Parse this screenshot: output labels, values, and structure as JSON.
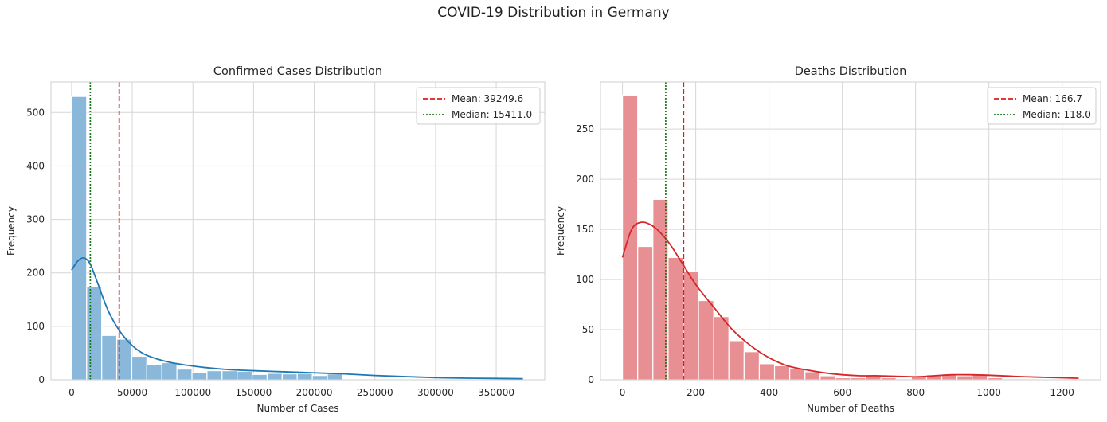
{
  "figure": {
    "title": "COVID-19 Distribution in Germany"
  },
  "chart_data": [
    {
      "type": "bar",
      "subtype": "histogram",
      "title": "Confirmed Cases Distribution",
      "xlabel": "Number of Cases",
      "ylabel": "Frequency",
      "xlim": [
        -17000,
        390000
      ],
      "ylim": [
        0,
        557
      ],
      "xticks": [
        0,
        50000,
        100000,
        150000,
        200000,
        250000,
        300000,
        350000
      ],
      "xtick_labels": [
        "0",
        "50000",
        "100000",
        "150000",
        "200000",
        "250000",
        "300000",
        "350000"
      ],
      "yticks": [
        0,
        100,
        200,
        300,
        400,
        500
      ],
      "ytick_labels": [
        "0",
        "100",
        "200",
        "300",
        "400",
        "500"
      ],
      "grid": true,
      "bar_color": "#8ab8db",
      "kde_color": "#1f77b4",
      "bin_edges": [
        0,
        12400,
        24800,
        37200,
        49600,
        62000,
        74400,
        86800,
        99200,
        111600,
        124000,
        136400,
        148800,
        161200,
        173600,
        186000,
        198400,
        210800,
        223200,
        235600,
        248000,
        260400,
        272800,
        285200,
        297600,
        310000,
        322400,
        334800,
        347200,
        359600,
        372000
      ],
      "counts": [
        530,
        175,
        83,
        76,
        44,
        29,
        32,
        20,
        14,
        17,
        17,
        16,
        10,
        12,
        11,
        12,
        8,
        11,
        0,
        0,
        0,
        0,
        0,
        0,
        0,
        0,
        0,
        0,
        0,
        1
      ],
      "kde": {
        "x": [
          0,
          5000,
          10000,
          15000,
          20000,
          30000,
          40000,
          50000,
          60000,
          75000,
          90000,
          110000,
          130000,
          150000,
          175000,
          200000,
          225000,
          250000,
          275000,
          300000,
          325000,
          350000,
          372000
        ],
        "y": [
          205,
          222,
          228,
          218,
          190,
          130,
          90,
          64,
          48,
          36,
          29,
          23,
          19,
          17,
          15,
          13,
          11,
          8,
          6,
          4,
          3,
          2.5,
          2
        ]
      },
      "lines": [
        {
          "name": "Mean: 39249.6",
          "value": 39249.6,
          "color": "#e31a1c",
          "style": "dashed"
        },
        {
          "name": "Median: 15411.0",
          "value": 15411.0,
          "color": "#1a7a1a",
          "style": "dotted"
        }
      ],
      "legend_position": "top-right"
    },
    {
      "type": "bar",
      "subtype": "histogram",
      "title": "Deaths Distribution",
      "xlabel": "Number of Deaths",
      "ylabel": "Frequency",
      "xlim": [
        -60,
        1305
      ],
      "ylim": [
        0,
        297
      ],
      "xticks": [
        0,
        200,
        400,
        600,
        800,
        1000,
        1200
      ],
      "xtick_labels": [
        "0",
        "200",
        "400",
        "600",
        "800",
        "1000",
        "1200"
      ],
      "yticks": [
        0,
        50,
        100,
        150,
        200,
        250
      ],
      "ytick_labels": [
        "0",
        "50",
        "100",
        "150",
        "200",
        "250"
      ],
      "grid": true,
      "bar_color": "#e88f93",
      "kde_color": "#d62728",
      "bin_edges": [
        0,
        41.5,
        83,
        124.5,
        166,
        207.5,
        249,
        290.5,
        332,
        373.5,
        415,
        456.5,
        498,
        539.5,
        581,
        622.5,
        664,
        705.5,
        747,
        788.5,
        830,
        871.5,
        913,
        954.5,
        996,
        1037.5,
        1079,
        1120.5,
        1162,
        1203.5,
        1245
      ],
      "counts": [
        284,
        133,
        180,
        122,
        108,
        79,
        63,
        39,
        28,
        16,
        14,
        11,
        8,
        4,
        2,
        2,
        5,
        2,
        1,
        4,
        5,
        5,
        4,
        5,
        2,
        1,
        1,
        0,
        0,
        1
      ],
      "kde": {
        "x": [
          0,
          25,
          50,
          75,
          100,
          130,
          160,
          200,
          250,
          300,
          350,
          400,
          450,
          500,
          550,
          600,
          650,
          700,
          800,
          850,
          900,
          950,
          1000,
          1100,
          1200,
          1245
        ],
        "y": [
          122,
          150,
          157,
          155,
          148,
          135,
          118,
          95,
          72,
          50,
          34,
          22,
          14,
          10,
          7,
          5,
          4,
          4,
          3,
          4,
          5,
          5,
          4.5,
          3,
          2,
          1.5
        ]
      },
      "lines": [
        {
          "name": "Mean: 166.7",
          "value": 166.7,
          "color": "#e31a1c",
          "style": "dashed"
        },
        {
          "name": "Median: 118.0",
          "value": 118.0,
          "color": "#1a7a1a",
          "style": "dotted"
        }
      ],
      "legend_position": "top-right"
    }
  ]
}
